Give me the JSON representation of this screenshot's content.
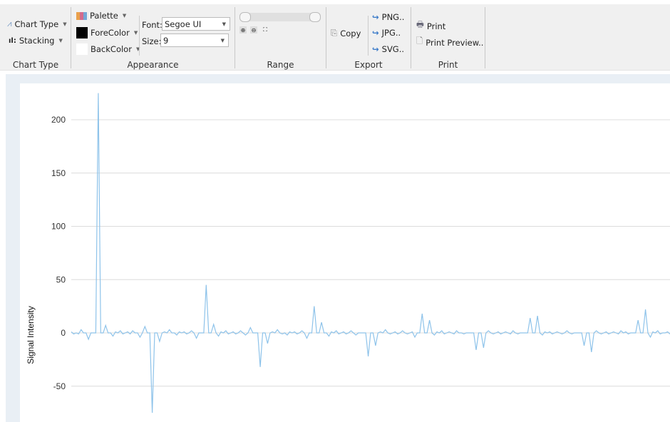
{
  "ribbon": {
    "chart_type_group": {
      "label": "Chart Type",
      "chart_type": "Chart Type",
      "stacking": "Stacking"
    },
    "appearance_group": {
      "label": "Appearance",
      "palette": "Palette",
      "forecolor": "ForeColor",
      "backcolor": "BackColor",
      "font_label": "Font:",
      "font_value": "Segoe UI",
      "size_label": "Size:",
      "size_value": "9",
      "forecolor_value": "#000000",
      "backcolor_value": "#ffffff"
    },
    "range_group": {
      "label": "Range"
    },
    "export_group": {
      "label": "Export",
      "copy": "Copy",
      "png": "PNG..",
      "jpg": "JPG..",
      "svg": "SVG.."
    },
    "print_group": {
      "label": "Print",
      "print": "Print",
      "print_preview": "Print Preview.."
    }
  },
  "chart_data": {
    "type": "line",
    "ylabel": "Signal Intensity",
    "xlabel": "",
    "ylim": [
      -85,
      235
    ],
    "yticks": [
      -50,
      0,
      50,
      100,
      150,
      200
    ],
    "grid": true,
    "line_color": "#8ec3ea",
    "values": [
      1,
      -1,
      0,
      -1,
      3,
      0,
      0,
      -6,
      0,
      0,
      0,
      225,
      0,
      0,
      7,
      0,
      0,
      -3,
      1,
      0,
      2,
      -1,
      0,
      1,
      -1,
      2,
      0,
      0,
      -4,
      0,
      6,
      0,
      0,
      -75,
      0,
      0,
      -8,
      0,
      1,
      0,
      3,
      0,
      0,
      -2,
      1,
      0,
      1,
      -1,
      0,
      2,
      0,
      -5,
      0,
      0,
      0,
      45,
      0,
      0,
      8,
      0,
      -3,
      1,
      0,
      2,
      -1,
      0,
      1,
      -1,
      0,
      2,
      0,
      -2,
      0,
      5,
      0,
      0,
      0,
      -32,
      0,
      0,
      -10,
      0,
      1,
      0,
      3,
      0,
      -1,
      0,
      -2,
      1,
      0,
      1,
      -1,
      0,
      2,
      0,
      -5,
      0,
      0,
      25,
      0,
      0,
      10,
      0,
      0,
      -3,
      1,
      0,
      2,
      -1,
      0,
      1,
      -1,
      0,
      2,
      0,
      -2,
      0,
      0,
      0,
      0,
      -22,
      0,
      0,
      -12,
      0,
      1,
      0,
      3,
      0,
      -1,
      0,
      1,
      -1,
      0,
      2,
      0,
      -1,
      0,
      1,
      -4,
      0,
      0,
      18,
      0,
      0,
      12,
      0,
      -2,
      1,
      0,
      2,
      -1,
      0,
      1,
      0,
      -1,
      2,
      0,
      0,
      -1,
      0,
      0,
      0,
      0,
      -16,
      0,
      0,
      -14,
      0,
      2,
      0,
      -1,
      0,
      1,
      -1,
      0,
      1,
      0,
      -1,
      2,
      0,
      -1,
      0,
      0,
      0,
      0,
      14,
      0,
      0,
      16,
      0,
      -2,
      1,
      0,
      1,
      -1,
      0,
      1,
      0,
      -1,
      0,
      2,
      0,
      -1,
      0,
      0,
      0,
      0,
      -12,
      0,
      0,
      -18,
      0,
      2,
      0,
      -1,
      0,
      1,
      -1,
      0,
      1,
      0,
      -1,
      2,
      0,
      1,
      -1,
      0,
      0,
      0,
      12,
      0,
      0,
      22,
      0,
      -4,
      1,
      0,
      2,
      -1,
      0,
      0,
      1,
      -1
    ]
  }
}
